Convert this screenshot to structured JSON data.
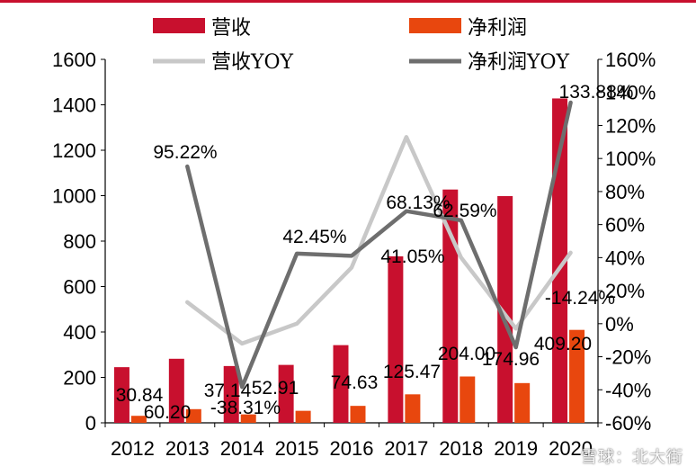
{
  "chart_data": {
    "type": "bar+line",
    "categories": [
      "2012",
      "2013",
      "2014",
      "2015",
      "2016",
      "2017",
      "2018",
      "2019",
      "2020"
    ],
    "series": [
      {
        "name": "营收",
        "kind": "bar",
        "axis": "left",
        "color": "#c8102e",
        "values": [
          245,
          282,
          250,
          255,
          342,
          733,
          1027,
          998,
          1428
        ]
      },
      {
        "name": "净利润",
        "kind": "bar",
        "axis": "left",
        "color": "#e8470e",
        "values": [
          30.84,
          60.2,
          37.14,
          52.91,
          74.63,
          125.47,
          204.0,
          174.96,
          409.2
        ],
        "labels": [
          "30.84",
          "60.20",
          "37.14",
          "52.91",
          "74.63",
          "125.47",
          "204.00",
          "174.96",
          "409.20"
        ]
      },
      {
        "name": "营收YOY",
        "kind": "line",
        "axis": "right",
        "color": "#c8c8c8",
        "values": [
          null,
          0.13,
          -0.12,
          0.0,
          0.34,
          1.13,
          0.4,
          -0.03,
          0.43
        ]
      },
      {
        "name": "净利润YOY",
        "kind": "line",
        "axis": "right",
        "color": "#6e6e6e",
        "values": [
          null,
          0.9522,
          -0.3831,
          0.4245,
          0.4105,
          0.6813,
          0.6259,
          -0.1424,
          1.3388
        ],
        "labels": [
          "",
          "95.22%",
          "-38.31%",
          "42.45%",
          "41.05%",
          "68.13%",
          "62.59%",
          "-14.24%",
          "133.88%"
        ]
      }
    ],
    "left_axis": {
      "min": 0,
      "max": 1600,
      "ticks": [
        "0",
        "200",
        "400",
        "600",
        "800",
        "1000",
        "1200",
        "1400",
        "1600"
      ]
    },
    "right_axis": {
      "min": -0.6,
      "max": 1.6,
      "ticks": [
        "-60%",
        "-40%",
        "-20%",
        "0%",
        "20%",
        "40%",
        "60%",
        "80%",
        "100%",
        "120%",
        "140%",
        "160%"
      ]
    },
    "legend": [
      {
        "label": "营收",
        "type": "bar",
        "color": "#c8102e"
      },
      {
        "label": "净利润",
        "type": "bar",
        "color": "#e8470e"
      },
      {
        "label": "营收YOY",
        "type": "line",
        "color": "#c8c8c8"
      },
      {
        "label": "净利润YOY",
        "type": "line",
        "color": "#6e6e6e"
      }
    ]
  },
  "watermark": "雪球：北大街"
}
